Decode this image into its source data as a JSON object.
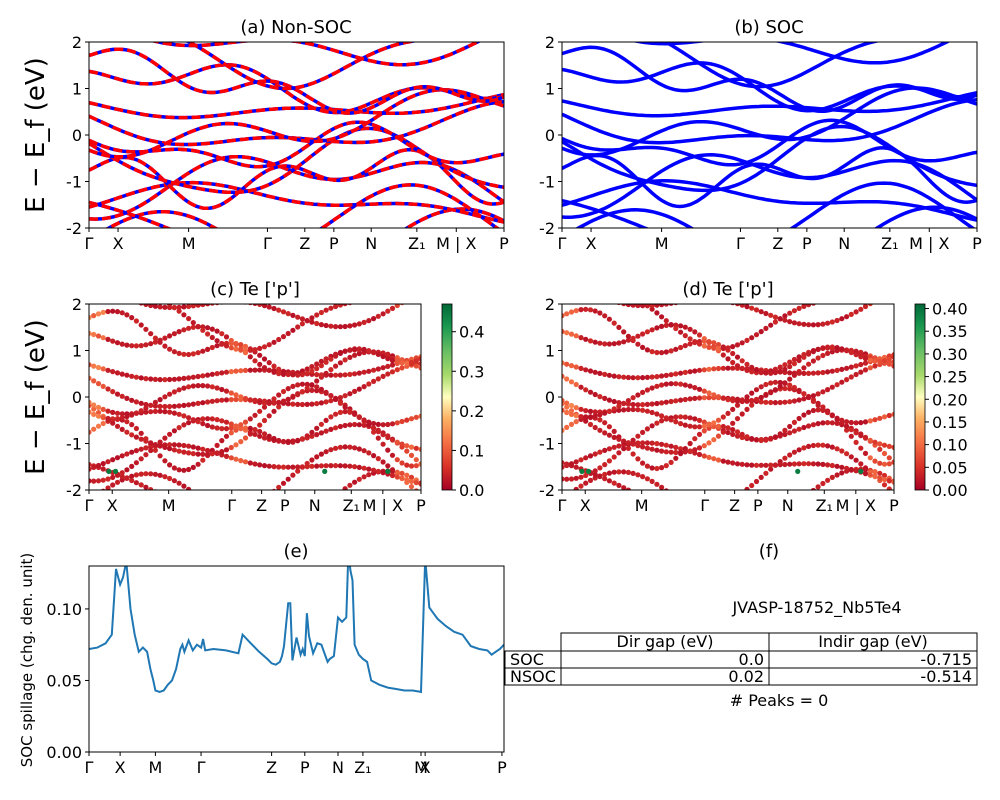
{
  "figure": {
    "shared_ylabel": "E − E_f (eV)",
    "kpath_labels": [
      "Γ",
      "X",
      "M",
      "Γ",
      "Z",
      "P",
      "N",
      "Z₁",
      "M | X",
      "P"
    ]
  },
  "chart_data": [
    {
      "id": "a",
      "type": "line",
      "title": "(a) Non-SOC",
      "ylabel": "E − E_f (eV)",
      "ylim": [
        -2,
        2
      ],
      "yticks": [
        -2,
        -1,
        0,
        1,
        2
      ],
      "xtick_labels": [
        "Γ",
        "X",
        "M",
        "Γ",
        "Z",
        "P",
        "N",
        "Z₁",
        "M | X",
        "P"
      ],
      "colors": {
        "spin_up": "#0000ff",
        "spin_down": "#ff0000"
      },
      "note": "many band lines; spin-up (blue) and spin-down (red dashed) overlap"
    },
    {
      "id": "b",
      "type": "line",
      "title": "(b) SOC",
      "ylim": [
        -2,
        2
      ],
      "yticks": [
        -2,
        -1,
        0,
        1,
        2
      ],
      "xtick_labels": [
        "Γ",
        "X",
        "M",
        "Γ",
        "Z",
        "P",
        "N",
        "Z₁",
        "M | X",
        "P"
      ],
      "colors": {
        "bands": "#0000ff"
      }
    },
    {
      "id": "c",
      "type": "scatter",
      "title": "(c)  Te ['p']",
      "ylabel": "E − E_f (eV)",
      "ylim": [
        -2,
        2
      ],
      "yticks": [
        -2,
        -1,
        0,
        1,
        2
      ],
      "xtick_labels": [
        "Γ",
        "X",
        "M",
        "Γ",
        "Z",
        "P",
        "N",
        "Z₁",
        "M | X",
        "P"
      ],
      "colorbar": {
        "colormap": "RdYlGn",
        "ticks": [
          "0.0",
          "0.1",
          "0.2",
          "0.3",
          "0.4"
        ],
        "max": 0.47
      }
    },
    {
      "id": "d",
      "type": "scatter",
      "title": "(d) Te ['p']",
      "ylim": [
        -2,
        2
      ],
      "yticks": [
        -2,
        -1,
        0,
        1,
        2
      ],
      "xtick_labels": [
        "Γ",
        "X",
        "M",
        "Γ",
        "Z",
        "P",
        "N",
        "Z₁",
        "M | X",
        "P"
      ],
      "colorbar": {
        "colormap": "RdYlGn",
        "ticks": [
          "0.00",
          "0.05",
          "0.10",
          "0.15",
          "0.20",
          "0.25",
          "0.30",
          "0.35",
          "0.40"
        ],
        "max": 0.41
      }
    },
    {
      "id": "e",
      "type": "line",
      "title": "(e)",
      "ylabel": "SOC spillage (chg. den. unit)",
      "ylim": [
        0,
        0.13
      ],
      "yticks": [
        "0.00",
        "0.05",
        "0.10"
      ],
      "xtick_labels": [
        "Γ",
        "X",
        "M",
        "Γ",
        "Z",
        "P",
        "N",
        "Z₁",
        "M",
        "X",
        "P"
      ],
      "color": "#1f77b4",
      "x": [
        0,
        0.02,
        0.04,
        0.055,
        0.065,
        0.075,
        0.082,
        0.09,
        0.1,
        0.11,
        0.12,
        0.13,
        0.14,
        0.148,
        0.155,
        0.16,
        0.17,
        0.18,
        0.19,
        0.2,
        0.21,
        0.22,
        0.225,
        0.23,
        0.24,
        0.25,
        0.26,
        0.27,
        0.275,
        0.28,
        0.3,
        0.33,
        0.36,
        0.37,
        0.39,
        0.41,
        0.43,
        0.44,
        0.45,
        0.455,
        0.46,
        0.465,
        0.47,
        0.48,
        0.485,
        0.49,
        0.5,
        0.51,
        0.515,
        0.52,
        0.525,
        0.53,
        0.54,
        0.55,
        0.56,
        0.57,
        0.575,
        0.58,
        0.59,
        0.6,
        0.61,
        0.62,
        0.625,
        0.63,
        0.635,
        0.64,
        0.65,
        0.66,
        0.67,
        0.68,
        0.7,
        0.72,
        0.74,
        0.76,
        0.78,
        0.8,
        0.8,
        0.81,
        0.82,
        0.83,
        0.84,
        0.86,
        0.88,
        0.9,
        0.92,
        0.94,
        0.96,
        0.97,
        0.98,
        0.99,
        1.0
      ],
      "y": [
        0.072,
        0.073,
        0.076,
        0.082,
        0.128,
        0.117,
        0.122,
        0.133,
        0.1,
        0.082,
        0.07,
        0.073,
        0.07,
        0.058,
        0.05,
        0.043,
        0.042,
        0.043,
        0.047,
        0.05,
        0.058,
        0.072,
        0.075,
        0.07,
        0.078,
        0.071,
        0.075,
        0.073,
        0.079,
        0.071,
        0.072,
        0.071,
        0.069,
        0.082,
        0.076,
        0.07,
        0.065,
        0.062,
        0.061,
        0.062,
        0.063,
        0.067,
        0.074,
        0.104,
        0.104,
        0.064,
        0.08,
        0.068,
        0.072,
        0.067,
        0.097,
        0.081,
        0.069,
        0.076,
        0.075,
        0.067,
        0.063,
        0.065,
        0.067,
        0.094,
        0.091,
        0.094,
        0.14,
        0.127,
        0.12,
        0.075,
        0.068,
        0.065,
        0.063,
        0.05,
        0.047,
        0.045,
        0.044,
        0.043,
        0.043,
        0.042,
        0.042,
        0.135,
        0.101,
        0.097,
        0.093,
        0.088,
        0.084,
        0.082,
        0.074,
        0.072,
        0.071,
        0.068,
        0.07,
        0.072,
        0.075
      ]
    },
    {
      "id": "f",
      "type": "table",
      "title": "(f)",
      "material": "JVASP-18752_Nb5Te4",
      "columns": [
        "Dir gap (eV)",
        "Indir gap (eV)"
      ],
      "rows": [
        {
          "label": "SOC",
          "dir": "0.0",
          "indir": "-0.715"
        },
        {
          "label": "NSOC",
          "dir": "0.02",
          "indir": "-0.514"
        }
      ],
      "peaks_text": "# Peaks = 0"
    }
  ]
}
